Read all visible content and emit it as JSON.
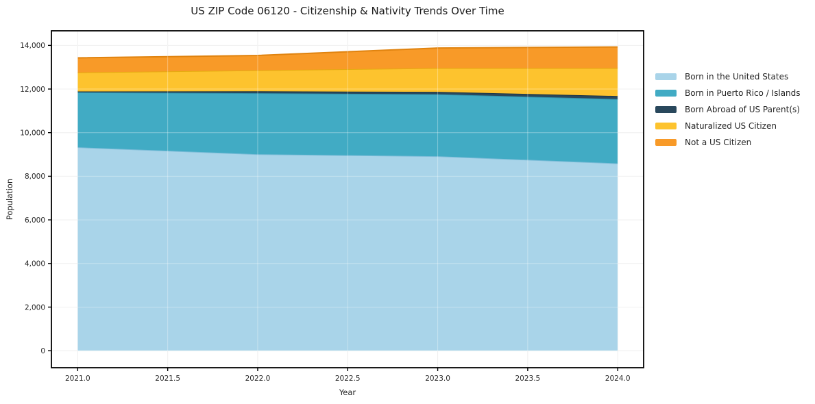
{
  "chart_data": {
    "type": "area",
    "stacked": true,
    "title": "US ZIP Code 06120 - Citizenship & Nativity Trends Over Time",
    "xlabel": "Year",
    "ylabel": "Population",
    "x": [
      2021,
      2022,
      2023,
      2024
    ],
    "series": [
      {
        "name": "Born in the United States",
        "values": [
          9330,
          9010,
          8920,
          8590
        ],
        "color": "#a9d4e9",
        "edge_color": "#7cbcd8"
      },
      {
        "name": "Born in Puerto Rico / Islands",
        "values": [
          2520,
          2800,
          2840,
          2950
        ],
        "color": "#41abc4",
        "edge_color": "#3191a9"
      },
      {
        "name": "Born Abroad of US Parent(s)",
        "values": [
          40,
          90,
          110,
          140
        ],
        "color": "#29485c",
        "edge_color": "#1d3748"
      },
      {
        "name": "Naturalized US Citizen",
        "values": [
          870,
          960,
          1090,
          1280
        ],
        "color": "#fdc32e",
        "edge_color": "#e5ab10"
      },
      {
        "name": "Not a US Citizen",
        "values": [
          670,
          680,
          920,
          970
        ],
        "color": "#f89a28",
        "edge_color": "#e0830f"
      }
    ],
    "totals": [
      13430,
      13540,
      13880,
      13930
    ],
    "xlim": [
      2020.854,
      2024.144
    ],
    "ylim": [
      -780,
      14670
    ],
    "xtick_values": [
      2021.0,
      2021.5,
      2022.0,
      2022.5,
      2023.0,
      2023.5,
      2024.0
    ],
    "xtick_labels": [
      "2021.0",
      "2021.5",
      "2022.0",
      "2022.5",
      "2023.0",
      "2023.5",
      "2024.0"
    ],
    "ytick_values": [
      0,
      2000,
      4000,
      6000,
      8000,
      10000,
      12000,
      14000
    ],
    "ytick_labels": [
      "0",
      "2,000",
      "4,000",
      "6,000",
      "8,000",
      "10,000",
      "12,000",
      "14,000"
    ],
    "grid": true,
    "legend_position": "right-outside"
  },
  "style": {
    "spine_color": "#000000",
    "grid_color_under": "#e9e9e9",
    "grid_color_over": "rgba(255,255,255,0.35)",
    "tick_text_color": "#262626",
    "tick_font_px": 10.5
  }
}
